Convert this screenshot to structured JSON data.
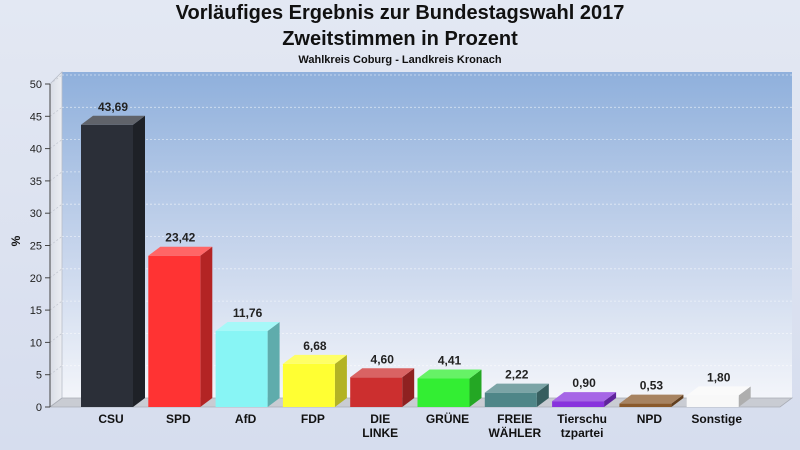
{
  "chart_data": {
    "type": "bar",
    "title": "Vorläufiges Ergebnis zur Bundestagswahl 2017",
    "title2": "Zweitstimmen in Prozent",
    "subtitle": "Wahlkreis Coburg - Landkreis Kronach",
    "ylabel": "%",
    "xlabel": "",
    "ylim": [
      0,
      50
    ],
    "yticks": [
      0,
      5,
      10,
      15,
      20,
      25,
      30,
      35,
      40,
      45,
      50
    ],
    "grid": true,
    "categories": [
      [
        "CSU"
      ],
      [
        "SPD"
      ],
      [
        "AfD"
      ],
      [
        "FDP"
      ],
      [
        "DIE",
        "LINKE"
      ],
      [
        "GRÜNE"
      ],
      [
        "FREIE",
        "WÄHLER"
      ],
      [
        "Tierschu",
        "tzpartei"
      ],
      [
        "NPD"
      ],
      [
        "Sonstige"
      ]
    ],
    "values": [
      43.69,
      23.42,
      11.76,
      6.68,
      4.6,
      4.41,
      2.22,
      0.9,
      0.53,
      1.8
    ],
    "value_labels": [
      "43,69",
      "23,42",
      "11,76",
      "6,68",
      "4,60",
      "4,41",
      "2,22",
      "0,90",
      "0,53",
      "1,80"
    ],
    "colors": [
      "#2b2f38",
      "#ff3333",
      "#88f5f5",
      "#ffff33",
      "#cc2f2f",
      "#33ee33",
      "#4f8688",
      "#8833dd",
      "#8a5a2c",
      "#f8f8f8"
    ]
  }
}
